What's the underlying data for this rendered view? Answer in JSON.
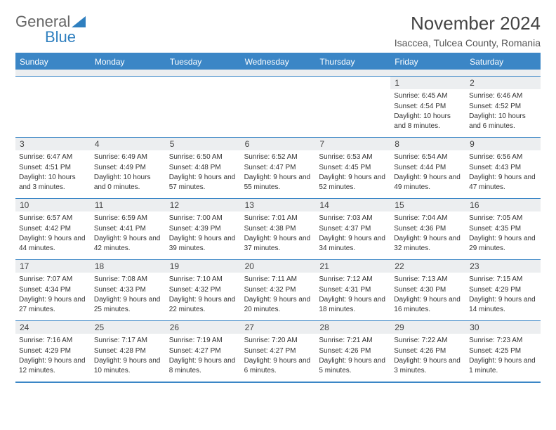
{
  "brand": {
    "part1": "General",
    "part2": "Blue"
  },
  "title": "November 2024",
  "location": "Isaccea, Tulcea County, Romania",
  "colors": {
    "accent": "#3b86c6",
    "headerRow": "#eceef0",
    "text": "#333333",
    "titleText": "#444444"
  },
  "dayNames": [
    "Sunday",
    "Monday",
    "Tuesday",
    "Wednesday",
    "Thursday",
    "Friday",
    "Saturday"
  ],
  "weeks": [
    [
      null,
      null,
      null,
      null,
      null,
      {
        "n": "1",
        "sr": "Sunrise: 6:45 AM",
        "ss": "Sunset: 4:54 PM",
        "dl": "Daylight: 10 hours and 8 minutes."
      },
      {
        "n": "2",
        "sr": "Sunrise: 6:46 AM",
        "ss": "Sunset: 4:52 PM",
        "dl": "Daylight: 10 hours and 6 minutes."
      }
    ],
    [
      {
        "n": "3",
        "sr": "Sunrise: 6:47 AM",
        "ss": "Sunset: 4:51 PM",
        "dl": "Daylight: 10 hours and 3 minutes."
      },
      {
        "n": "4",
        "sr": "Sunrise: 6:49 AM",
        "ss": "Sunset: 4:49 PM",
        "dl": "Daylight: 10 hours and 0 minutes."
      },
      {
        "n": "5",
        "sr": "Sunrise: 6:50 AM",
        "ss": "Sunset: 4:48 PM",
        "dl": "Daylight: 9 hours and 57 minutes."
      },
      {
        "n": "6",
        "sr": "Sunrise: 6:52 AM",
        "ss": "Sunset: 4:47 PM",
        "dl": "Daylight: 9 hours and 55 minutes."
      },
      {
        "n": "7",
        "sr": "Sunrise: 6:53 AM",
        "ss": "Sunset: 4:45 PM",
        "dl": "Daylight: 9 hours and 52 minutes."
      },
      {
        "n": "8",
        "sr": "Sunrise: 6:54 AM",
        "ss": "Sunset: 4:44 PM",
        "dl": "Daylight: 9 hours and 49 minutes."
      },
      {
        "n": "9",
        "sr": "Sunrise: 6:56 AM",
        "ss": "Sunset: 4:43 PM",
        "dl": "Daylight: 9 hours and 47 minutes."
      }
    ],
    [
      {
        "n": "10",
        "sr": "Sunrise: 6:57 AM",
        "ss": "Sunset: 4:42 PM",
        "dl": "Daylight: 9 hours and 44 minutes."
      },
      {
        "n": "11",
        "sr": "Sunrise: 6:59 AM",
        "ss": "Sunset: 4:41 PM",
        "dl": "Daylight: 9 hours and 42 minutes."
      },
      {
        "n": "12",
        "sr": "Sunrise: 7:00 AM",
        "ss": "Sunset: 4:39 PM",
        "dl": "Daylight: 9 hours and 39 minutes."
      },
      {
        "n": "13",
        "sr": "Sunrise: 7:01 AM",
        "ss": "Sunset: 4:38 PM",
        "dl": "Daylight: 9 hours and 37 minutes."
      },
      {
        "n": "14",
        "sr": "Sunrise: 7:03 AM",
        "ss": "Sunset: 4:37 PM",
        "dl": "Daylight: 9 hours and 34 minutes."
      },
      {
        "n": "15",
        "sr": "Sunrise: 7:04 AM",
        "ss": "Sunset: 4:36 PM",
        "dl": "Daylight: 9 hours and 32 minutes."
      },
      {
        "n": "16",
        "sr": "Sunrise: 7:05 AM",
        "ss": "Sunset: 4:35 PM",
        "dl": "Daylight: 9 hours and 29 minutes."
      }
    ],
    [
      {
        "n": "17",
        "sr": "Sunrise: 7:07 AM",
        "ss": "Sunset: 4:34 PM",
        "dl": "Daylight: 9 hours and 27 minutes."
      },
      {
        "n": "18",
        "sr": "Sunrise: 7:08 AM",
        "ss": "Sunset: 4:33 PM",
        "dl": "Daylight: 9 hours and 25 minutes."
      },
      {
        "n": "19",
        "sr": "Sunrise: 7:10 AM",
        "ss": "Sunset: 4:32 PM",
        "dl": "Daylight: 9 hours and 22 minutes."
      },
      {
        "n": "20",
        "sr": "Sunrise: 7:11 AM",
        "ss": "Sunset: 4:32 PM",
        "dl": "Daylight: 9 hours and 20 minutes."
      },
      {
        "n": "21",
        "sr": "Sunrise: 7:12 AM",
        "ss": "Sunset: 4:31 PM",
        "dl": "Daylight: 9 hours and 18 minutes."
      },
      {
        "n": "22",
        "sr": "Sunrise: 7:13 AM",
        "ss": "Sunset: 4:30 PM",
        "dl": "Daylight: 9 hours and 16 minutes."
      },
      {
        "n": "23",
        "sr": "Sunrise: 7:15 AM",
        "ss": "Sunset: 4:29 PM",
        "dl": "Daylight: 9 hours and 14 minutes."
      }
    ],
    [
      {
        "n": "24",
        "sr": "Sunrise: 7:16 AM",
        "ss": "Sunset: 4:29 PM",
        "dl": "Daylight: 9 hours and 12 minutes."
      },
      {
        "n": "25",
        "sr": "Sunrise: 7:17 AM",
        "ss": "Sunset: 4:28 PM",
        "dl": "Daylight: 9 hours and 10 minutes."
      },
      {
        "n": "26",
        "sr": "Sunrise: 7:19 AM",
        "ss": "Sunset: 4:27 PM",
        "dl": "Daylight: 9 hours and 8 minutes."
      },
      {
        "n": "27",
        "sr": "Sunrise: 7:20 AM",
        "ss": "Sunset: 4:27 PM",
        "dl": "Daylight: 9 hours and 6 minutes."
      },
      {
        "n": "28",
        "sr": "Sunrise: 7:21 AM",
        "ss": "Sunset: 4:26 PM",
        "dl": "Daylight: 9 hours and 5 minutes."
      },
      {
        "n": "29",
        "sr": "Sunrise: 7:22 AM",
        "ss": "Sunset: 4:26 PM",
        "dl": "Daylight: 9 hours and 3 minutes."
      },
      {
        "n": "30",
        "sr": "Sunrise: 7:23 AM",
        "ss": "Sunset: 4:25 PM",
        "dl": "Daylight: 9 hours and 1 minute."
      }
    ]
  ]
}
